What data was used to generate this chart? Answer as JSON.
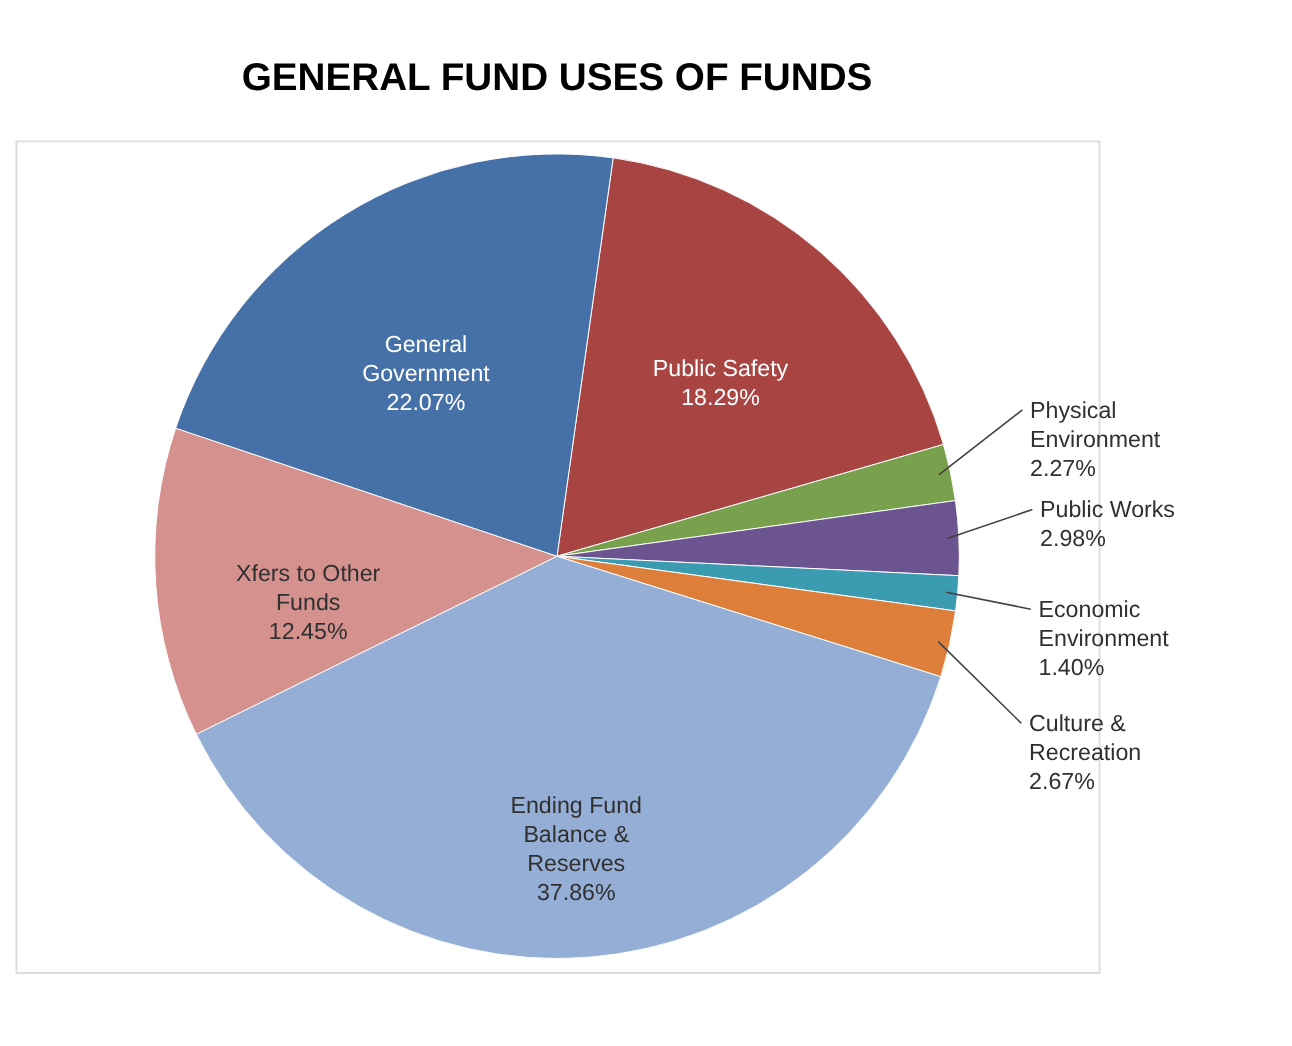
{
  "chart_data": {
    "type": "pie",
    "title": "GENERAL FUND USES OF FUNDS",
    "categories": [
      "Public Safety",
      "Physical Environment",
      "Public Works",
      "Economic Environment",
      "Culture & Recreation",
      "Ending Fund Balance & Reserves",
      "Xfers to Other Funds",
      "General Government"
    ],
    "values": [
      18.29,
      2.27,
      2.98,
      1.4,
      2.67,
      37.86,
      12.45,
      22.07
    ],
    "colors": [
      "#a84543",
      "#79a04c",
      "#6b5490",
      "#3b9bb1",
      "#dd7f3b",
      "#95aed6",
      "#d4918e",
      "#4671a8"
    ],
    "value_labels": [
      "18.29%",
      "2.27%",
      "2.98%",
      "1.40%",
      "2.67%",
      "37.86%",
      "12.45%",
      "22.07%"
    ],
    "legend": false
  }
}
